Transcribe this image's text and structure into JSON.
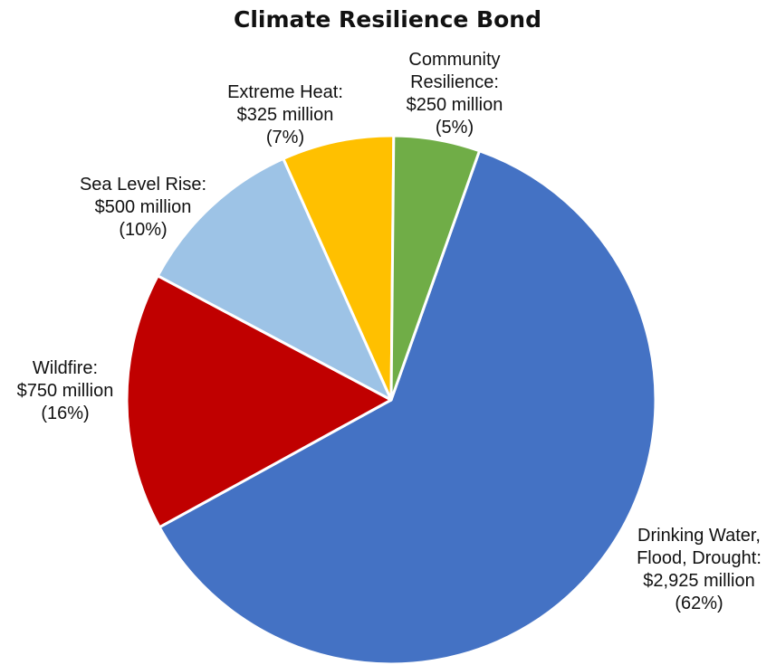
{
  "chart_data": {
    "type": "pie",
    "title": "Climate Resilience Bond",
    "start_angle_deg": 19.5,
    "direction": "clockwise",
    "slices": [
      {
        "label_lines": [
          "Drinking Water,",
          "Flood, Drought:",
          "$2,925 million",
          "(62%)"
        ],
        "value": 2925,
        "unit": "million",
        "percent": 62,
        "color": "#4472C4"
      },
      {
        "label_lines": [
          "Wildfire:",
          "$750 million",
          "(16%)"
        ],
        "value": 750,
        "unit": "million",
        "percent": 16,
        "color": "#C00000"
      },
      {
        "label_lines": [
          "Sea Level Rise:",
          "$500 million",
          "(10%)"
        ],
        "value": 500,
        "unit": "million",
        "percent": 10,
        "color": "#9DC3E6"
      },
      {
        "label_lines": [
          "Extreme Heat:",
          "$325 million",
          "(7%)"
        ],
        "value": 325,
        "unit": "million",
        "percent": 7,
        "color": "#FFC000"
      },
      {
        "label_lines": [
          "Community",
          "Resilience:",
          "$250 million",
          "(5%)"
        ],
        "value": 250,
        "unit": "million",
        "percent": 5,
        "color": "#70AD47"
      }
    ]
  }
}
